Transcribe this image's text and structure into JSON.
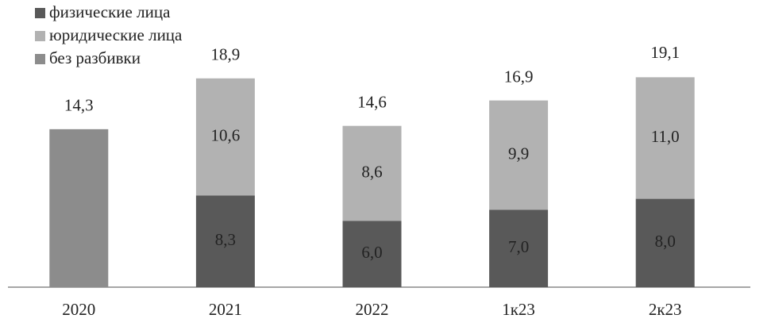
{
  "chart_data": {
    "type": "stacked-bar",
    "categories": [
      "2020",
      "2021",
      "2022",
      "1к23",
      "2к23"
    ],
    "series": [
      {
        "name": "физические лица",
        "color": "#595959",
        "values": [
          null,
          8.3,
          6.0,
          7.0,
          8.0
        ],
        "value_labels": [
          null,
          "8,3",
          "6,0",
          "7,0",
          "8,0"
        ]
      },
      {
        "name": "юридические лица",
        "color": "#b2b2b2",
        "values": [
          null,
          10.6,
          8.6,
          9.9,
          11.0
        ],
        "value_labels": [
          null,
          "10,6",
          "8,6",
          "9,9",
          "11,0"
        ]
      },
      {
        "name": "без разбивки",
        "color": "#8c8c8c",
        "values": [
          14.3,
          null,
          null,
          null,
          null
        ],
        "value_labels": [
          null,
          null,
          null,
          null,
          null
        ]
      }
    ],
    "totals": [
      14.3,
      18.9,
      14.6,
      16.9,
      19.1
    ],
    "total_labels": [
      "14,3",
      "18,9",
      "14,6",
      "16,9",
      "19,1"
    ],
    "legend": "top-left"
  }
}
